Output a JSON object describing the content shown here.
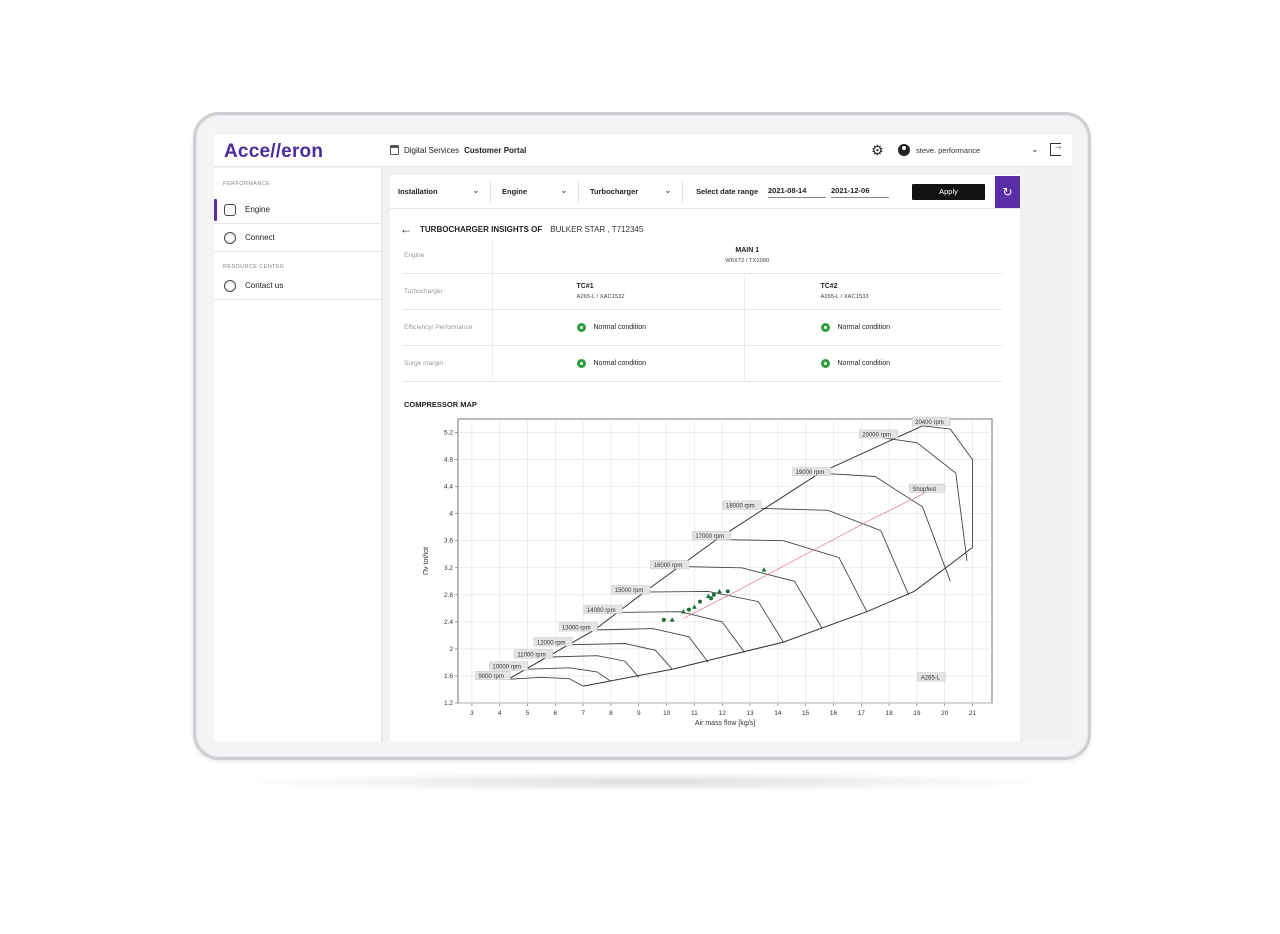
{
  "brand": {
    "logo": "Acce//eron"
  },
  "header": {
    "portal_prefix": "Digital Services",
    "portal_name": "Customer Portal",
    "user_name": "steve. performance"
  },
  "sidebar": {
    "section_performance": "PERFORMANCE",
    "items": [
      {
        "label": "Engine",
        "icon": "engine-icon"
      },
      {
        "label": "Connect",
        "icon": "connect-icon"
      }
    ],
    "section_resource": "RESOURCE CENTER",
    "resource_items": [
      {
        "label": "Contact us",
        "icon": "headset-icon"
      }
    ]
  },
  "filters": {
    "installation": "Installation",
    "engine": "Engine",
    "turbocharger": "Turbocharger",
    "date_label": "Select date range",
    "date_from": "2021-08-14",
    "date_to": "2021-12-06",
    "apply": "Apply"
  },
  "insights": {
    "title": "TURBOCHARGER INSIGHTS OF",
    "ship": "BULKER STAR , T712345",
    "rows": {
      "engine_label": "Engine",
      "engine_name": "MAIN 1",
      "engine_model": "W6X72 / TX1090",
      "tc_label": "Turbocharger",
      "tc1_name": "TC#1",
      "tc1_model": "A265-L / XAC1532",
      "tc2_name": "TC#2",
      "tc2_model": "A265-L / XAC1533",
      "eff_label": "Efficiency/ Performance",
      "surge_label": "Surge margin",
      "status_text": "Normal condition",
      "status_color": "#2e9e3c"
    }
  },
  "compressor_map": {
    "title": "COMPRESSOR MAP"
  },
  "chart_data": {
    "type": "line",
    "xlabel": "Air mass flow [kg/s]",
    "ylabel": "Πv tot/tot",
    "xlim": [
      2.5,
      21.7
    ],
    "ylim": [
      1.2,
      5.4
    ],
    "xticks": [
      3,
      4,
      5,
      6,
      7,
      8,
      9,
      10,
      11,
      12,
      13,
      14,
      15,
      16,
      17,
      18,
      19,
      20,
      21
    ],
    "yticks": [
      1.2,
      1.6,
      2,
      2.4,
      2.8,
      3.2,
      3.6,
      4,
      4.4,
      4.8,
      5.2
    ],
    "speed_lines": [
      {
        "name": "9000 rpm",
        "label_x": 3.2,
        "label_y": 1.58,
        "points": [
          [
            4.3,
            1.55
          ],
          [
            5.5,
            1.58
          ],
          [
            6.5,
            1.56
          ],
          [
            7.0,
            1.45
          ]
        ]
      },
      {
        "name": "10000 rpm",
        "label_x": 3.7,
        "label_y": 1.72,
        "points": [
          [
            5.0,
            1.7
          ],
          [
            6.5,
            1.72
          ],
          [
            7.5,
            1.66
          ],
          [
            8.0,
            1.52
          ]
        ]
      },
      {
        "name": "11000 rpm",
        "label_x": 4.6,
        "label_y": 1.9,
        "points": [
          [
            5.8,
            1.88
          ],
          [
            7.5,
            1.9
          ],
          [
            8.5,
            1.82
          ],
          [
            9.0,
            1.58
          ]
        ]
      },
      {
        "name": "12000 rpm",
        "label_x": 5.3,
        "label_y": 2.08,
        "points": [
          [
            6.5,
            2.06
          ],
          [
            8.5,
            2.08
          ],
          [
            9.6,
            1.98
          ],
          [
            10.2,
            1.7
          ]
        ]
      },
      {
        "name": "13000 rpm",
        "label_x": 6.2,
        "label_y": 2.3,
        "points": [
          [
            7.4,
            2.28
          ],
          [
            9.5,
            2.3
          ],
          [
            10.8,
            2.18
          ],
          [
            11.5,
            1.8
          ]
        ]
      },
      {
        "name": "14000 rpm",
        "label_x": 7.1,
        "label_y": 2.56,
        "points": [
          [
            8.3,
            2.54
          ],
          [
            10.5,
            2.55
          ],
          [
            12.0,
            2.4
          ],
          [
            12.8,
            1.95
          ]
        ]
      },
      {
        "name": "15000 rpm",
        "label_x": 8.1,
        "label_y": 2.85,
        "points": [
          [
            9.2,
            2.84
          ],
          [
            11.5,
            2.85
          ],
          [
            13.3,
            2.7
          ],
          [
            14.2,
            2.1
          ]
        ]
      },
      {
        "name": "16000 rpm",
        "label_x": 9.5,
        "label_y": 3.22,
        "points": [
          [
            10.4,
            3.22
          ],
          [
            12.7,
            3.2
          ],
          [
            14.6,
            3.0
          ],
          [
            15.6,
            2.3
          ]
        ]
      },
      {
        "name": "17000 rpm",
        "label_x": 11.0,
        "label_y": 3.65,
        "points": [
          [
            11.8,
            3.62
          ],
          [
            14.2,
            3.6
          ],
          [
            16.2,
            3.35
          ],
          [
            17.2,
            2.55
          ]
        ]
      },
      {
        "name": "18000 rpm",
        "label_x": 12.1,
        "label_y": 4.1,
        "points": [
          [
            13.3,
            4.08
          ],
          [
            15.8,
            4.05
          ],
          [
            17.7,
            3.75
          ],
          [
            18.7,
            2.8
          ]
        ]
      },
      {
        "name": "19000 rpm",
        "label_x": 14.6,
        "label_y": 4.6,
        "points": [
          [
            15.5,
            4.6
          ],
          [
            17.5,
            4.55
          ],
          [
            19.2,
            4.1
          ],
          [
            20.2,
            3.0
          ]
        ]
      },
      {
        "name": "20000 rpm",
        "label_x": 17.0,
        "label_y": 5.15,
        "points": [
          [
            17.8,
            5.12
          ],
          [
            19.0,
            5.05
          ],
          [
            20.4,
            4.6
          ],
          [
            20.8,
            3.3
          ]
        ]
      },
      {
        "name": "20400 rpm",
        "label_x": 18.9,
        "label_y": 5.34,
        "points": [
          [
            19.2,
            5.3
          ],
          [
            20.2,
            5.25
          ],
          [
            21.0,
            4.8
          ],
          [
            21.0,
            3.5
          ]
        ]
      }
    ],
    "surge_line": [
      [
        4.3,
        1.55
      ],
      [
        7.4,
        2.28
      ],
      [
        9.2,
        2.84
      ],
      [
        11.8,
        3.62
      ],
      [
        15.5,
        4.6
      ],
      [
        19.2,
        5.3
      ]
    ],
    "choke_line": [
      [
        7.0,
        1.45
      ],
      [
        10.2,
        1.7
      ],
      [
        14.2,
        2.1
      ],
      [
        17.2,
        2.55
      ],
      [
        18.9,
        2.85
      ],
      [
        20.2,
        3.25
      ],
      [
        21.0,
        3.5
      ]
    ],
    "shopfest_label": "Shopfest",
    "shopfest_line": [
      [
        10.6,
        2.45
      ],
      [
        12.5,
        2.85
      ],
      [
        15.0,
        3.4
      ],
      [
        17.3,
        3.9
      ],
      [
        19.4,
        4.33
      ]
    ],
    "model_label": "A265-L",
    "measurements": [
      [
        9.9,
        2.43
      ],
      [
        10.2,
        2.43
      ],
      [
        10.8,
        2.58
      ],
      [
        11.0,
        2.62
      ],
      [
        11.2,
        2.7
      ],
      [
        11.5,
        2.78
      ],
      [
        11.7,
        2.8
      ],
      [
        11.9,
        2.85
      ],
      [
        12.2,
        2.85
      ],
      [
        13.5,
        3.17
      ],
      [
        11.6,
        2.75
      ],
      [
        10.6,
        2.55
      ]
    ]
  }
}
